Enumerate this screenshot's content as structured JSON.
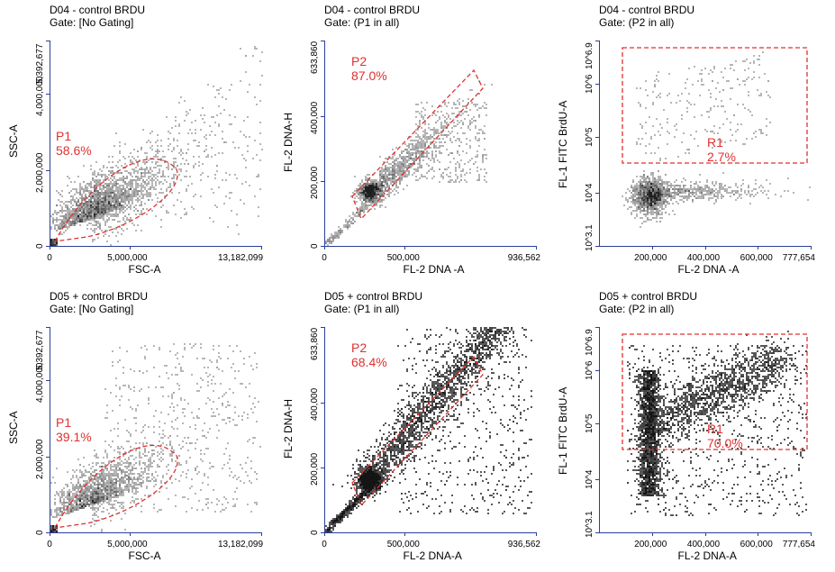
{
  "colors": {
    "gate": "#e03030",
    "axis": "#2b3f9a",
    "density_low": "#c8c8c8",
    "density_high": "#1a1a1a"
  },
  "panels": [
    {
      "title": "D04 - control BRDU",
      "gate": "Gate: [No Gating]",
      "xlabel": "FSC-A",
      "ylabel": "SSC-A",
      "xticks": [
        "0",
        "5,000,000",
        "13,182,099"
      ],
      "yticks": [
        "0",
        "2,000,000",
        "4,000,000",
        "5,392,677"
      ],
      "gate_labels": [
        "P1",
        "58.6%"
      ],
      "style": "light",
      "kind": "fsc"
    },
    {
      "title": "D04 - control BRDU",
      "gate": "Gate: (P1 in all)",
      "xlabel": "FL-2 DNA -A",
      "ylabel": "FL-2 DNA-H",
      "xticks": [
        "0",
        "500,000",
        "936,562"
      ],
      "yticks": [
        "0",
        "200,000",
        "400,000",
        "633,860"
      ],
      "gate_labels": [
        "P2",
        "87.0%"
      ],
      "style": "light",
      "kind": "dna"
    },
    {
      "title": "D04 - control BRDU",
      "gate": "Gate: (P2 in all)",
      "xlabel": "FL-2 DNA -A",
      "ylabel": "FL-1 FITC BrdU-A",
      "xticks": [
        "200,000",
        "400,000",
        "600,000",
        "777,654"
      ],
      "yticks": [
        "10^3.1",
        "10^4",
        "10^5",
        "10^6",
        "10^6.9"
      ],
      "gate_labels": [
        "R1",
        "2.7%"
      ],
      "style": "light",
      "kind": "brdu"
    },
    {
      "title": "D05 + control BRDU",
      "gate": "Gate: [No Gating]",
      "xlabel": "FSC-A",
      "ylabel": "SSC-A",
      "xticks": [
        "0",
        "5,000,000",
        "13,182,099"
      ],
      "yticks": [
        "0",
        "2,000,000",
        "4,000,000",
        "5,392,677"
      ],
      "gate_labels": [
        "P1",
        "39.1%"
      ],
      "style": "light",
      "kind": "fsc"
    },
    {
      "title": "D05 + control BRDU",
      "gate": "Gate: (P1 in all)",
      "xlabel": "FL-2 DNA-A",
      "ylabel": "FL-2 DNA-H",
      "xticks": [
        "0",
        "500,000",
        "936,562"
      ],
      "yticks": [
        "0",
        "200,000",
        "400,000",
        "633,860"
      ],
      "gate_labels": [
        "P2",
        "68.4%"
      ],
      "style": "dark",
      "kind": "dna"
    },
    {
      "title": "D05 + control BRDU",
      "gate": "Gate: (P2 in all)",
      "xlabel": "FL-2 DNA-A",
      "ylabel": "FL-1 FITC BrdU-A",
      "xticks": [
        "200,000",
        "400,000",
        "600,000",
        "777,654"
      ],
      "yticks": [
        "10^3.1",
        "10^4",
        "10^5",
        "10^6",
        "10^6.9"
      ],
      "gate_labels": [
        "R1",
        "70.0%"
      ],
      "style": "dark",
      "kind": "brdu"
    }
  ],
  "chart_data": [
    {
      "type": "scatter",
      "title": "D04 - control BRDU",
      "subtitle": "Gate: [No Gating]",
      "xlabel": "FSC-A",
      "ylabel": "SSC-A",
      "xlim": [
        0,
        13182099
      ],
      "ylim": [
        0,
        5392677
      ],
      "gate": {
        "name": "P1",
        "percent": 58.6
      }
    },
    {
      "type": "scatter",
      "title": "D04 - control BRDU",
      "subtitle": "Gate: (P1 in all)",
      "xlabel": "FL-2 DNA -A",
      "ylabel": "FL-2 DNA-H",
      "xlim": [
        0,
        936562
      ],
      "ylim": [
        0,
        633860
      ],
      "gate": {
        "name": "P2",
        "percent": 87.0
      }
    },
    {
      "type": "scatter",
      "title": "D04 - control BRDU",
      "subtitle": "Gate: (P2 in all)",
      "xlabel": "FL-2 DNA -A",
      "ylabel": "FL-1 FITC BrdU-A",
      "xlim": [
        0,
        777654
      ],
      "ylim_log10": [
        3.1,
        6.9
      ],
      "gate": {
        "name": "R1",
        "percent": 2.7
      }
    },
    {
      "type": "scatter",
      "title": "D05 + control BRDU",
      "subtitle": "Gate: [No Gating]",
      "xlabel": "FSC-A",
      "ylabel": "SSC-A",
      "xlim": [
        0,
        13182099
      ],
      "ylim": [
        0,
        5392677
      ],
      "gate": {
        "name": "P1",
        "percent": 39.1
      }
    },
    {
      "type": "scatter",
      "title": "D05 + control BRDU",
      "subtitle": "Gate: (P1 in all)",
      "xlabel": "FL-2 DNA-A",
      "ylabel": "FL-2 DNA-H",
      "xlim": [
        0,
        936562
      ],
      "ylim": [
        0,
        633860
      ],
      "gate": {
        "name": "P2",
        "percent": 68.4
      }
    },
    {
      "type": "scatter",
      "title": "D05 + control BRDU",
      "subtitle": "Gate: (P2 in all)",
      "xlabel": "FL-2 DNA-A",
      "ylabel": "FL-1 FITC BrdU-A",
      "xlim": [
        0,
        777654
      ],
      "ylim_log10": [
        3.1,
        6.9
      ],
      "gate": {
        "name": "R1",
        "percent": 70.0
      }
    }
  ]
}
